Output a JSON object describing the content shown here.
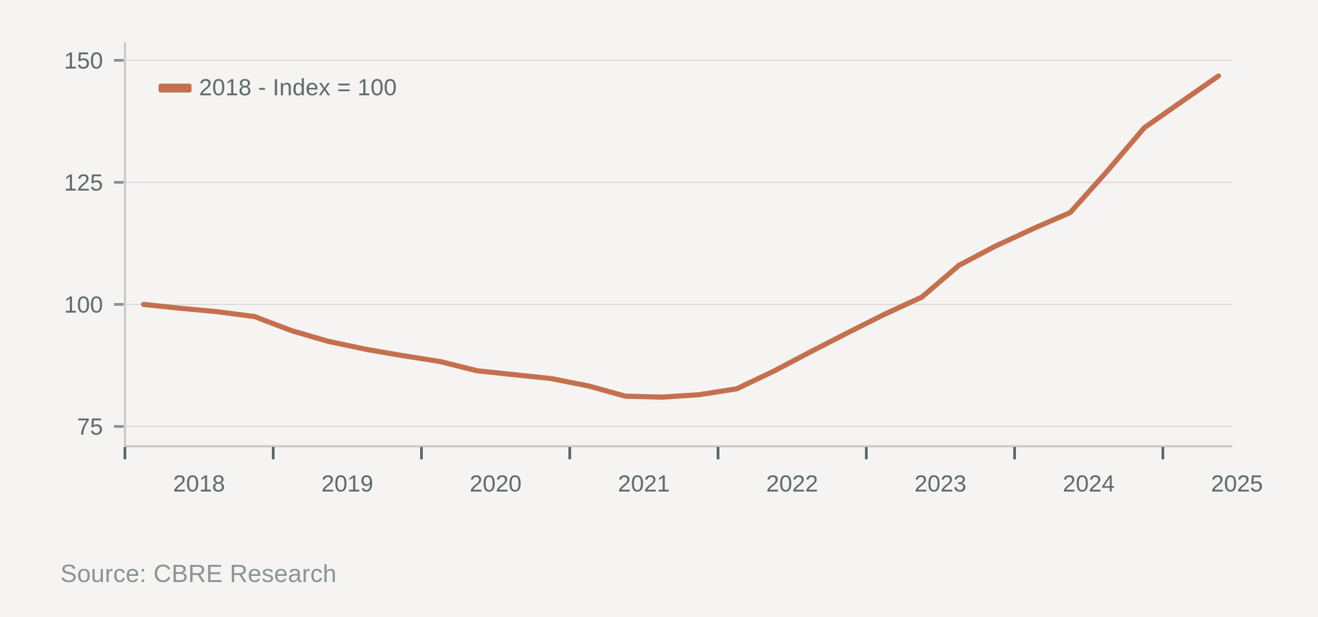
{
  "chart_data": {
    "type": "line",
    "title": "",
    "legend_label": "2018 - Index = 100",
    "legend_position": "top-left",
    "source": "Source: CBRE Research",
    "x_axis": {
      "tick_years": [
        "2018",
        "2019",
        "2020",
        "2021",
        "2022",
        "2023",
        "2024",
        "2025"
      ]
    },
    "y_axis": {
      "ticks": [
        150,
        125,
        100,
        75
      ],
      "range": [
        75,
        150
      ]
    },
    "grid": "horizontal",
    "series": [
      {
        "name": "2018 - Index = 100",
        "color": "#C4704E",
        "quarters": [
          "2018 Q1",
          "2018 Q2",
          "2018 Q3",
          "2018 Q4",
          "2019 Q1",
          "2019 Q2",
          "2019 Q3",
          "2019 Q4",
          "2020 Q1",
          "2020 Q2",
          "2020 Q3",
          "2020 Q4",
          "2021 Q1",
          "2021 Q2",
          "2021 Q3",
          "2021 Q4",
          "2022 Q1",
          "2022 Q2",
          "2022 Q3",
          "2022 Q4",
          "2023 Q1",
          "2023 Q2",
          "2023 Q3",
          "2023 Q4",
          "2024 Q1",
          "2024 Q2",
          "2024 Q3",
          "2024 Q4",
          "2025 Q1",
          "2025 Q2"
        ],
        "values": [
          100.0,
          99.2,
          98.5,
          97.5,
          94.6,
          92.4,
          90.8,
          89.5,
          88.3,
          86.4,
          85.6,
          84.8,
          83.3,
          81.2,
          81.0,
          81.5,
          82.7,
          86.3,
          90.3,
          94.2,
          98.0,
          101.5,
          108.0,
          112.0,
          115.5,
          118.8,
          127.3,
          136.2,
          141.5,
          146.8
        ]
      }
    ]
  },
  "colors": {
    "background": "#F5F4F2",
    "line": "#C4704E",
    "axis_text": "#5E6A6B",
    "gridline": "#DFDDDB",
    "axis_line": "#C6C7C6",
    "y_tick": "#8A9494",
    "x_tick": "#5E6A6B",
    "source_text": "#8A9494"
  }
}
